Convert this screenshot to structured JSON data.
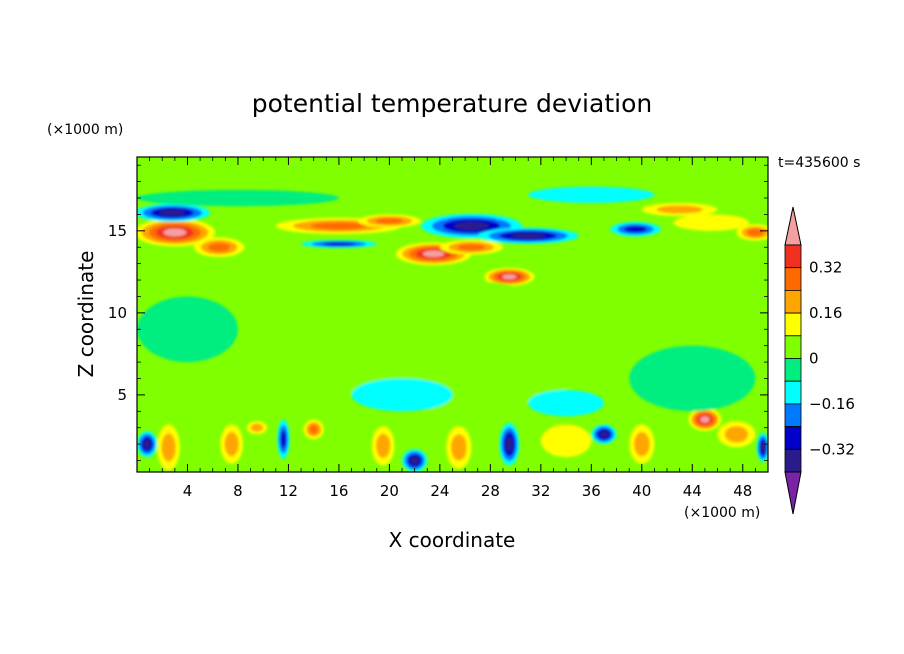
{
  "chart_data": {
    "type": "heatmap",
    "title": "potential temperature deviation",
    "xlabel": "X coordinate",
    "ylabel": "Z coordinate",
    "x_unit": "(×1000 m)",
    "y_unit": "(×1000 m)",
    "time_label": "t=435600 s",
    "xlim": [
      0,
      50
    ],
    "ylim": [
      0.3,
      19.5
    ],
    "x_ticks": [
      4,
      8,
      12,
      16,
      20,
      24,
      28,
      32,
      36,
      40,
      44,
      48
    ],
    "y_ticks": [
      5,
      10,
      15
    ],
    "colorbar": {
      "tick_labels": [
        "0.32",
        "0.16",
        "0",
        "−0.16",
        "−0.32"
      ],
      "tick_values": [
        0.32,
        0.16,
        0,
        -0.16,
        -0.32
      ],
      "levels": [
        {
          "min": 0.4,
          "max": null,
          "color": "#f4a0a0"
        },
        {
          "min": 0.32,
          "max": 0.4,
          "color": "#f03020"
        },
        {
          "min": 0.24,
          "max": 0.32,
          "color": "#ff6a00"
        },
        {
          "min": 0.16,
          "max": 0.24,
          "color": "#ffa500"
        },
        {
          "min": 0.08,
          "max": 0.16,
          "color": "#ffff00"
        },
        {
          "min": 0.0,
          "max": 0.08,
          "color": "#80ff00"
        },
        {
          "min": -0.08,
          "max": 0.0,
          "color": "#00ee80"
        },
        {
          "min": -0.16,
          "max": -0.08,
          "color": "#00ffff"
        },
        {
          "min": -0.24,
          "max": -0.16,
          "color": "#0078ff"
        },
        {
          "min": -0.32,
          "max": -0.24,
          "color": "#0000c8"
        },
        {
          "min": -0.4,
          "max": -0.32,
          "color": "#2a1a8a"
        },
        {
          "min": null,
          "max": -0.4,
          "color": "#7a22a8"
        }
      ]
    },
    "features": [
      {
        "x": 3,
        "z": 14.9,
        "rx": 3.2,
        "rz": 0.85,
        "value": 0.42
      },
      {
        "x": 6.5,
        "z": 14.0,
        "rx": 2.0,
        "rz": 0.6,
        "value": 0.3
      },
      {
        "x": 2.8,
        "z": 16.1,
        "rx": 3.0,
        "rz": 0.55,
        "value": -0.36
      },
      {
        "x": 16,
        "z": 15.3,
        "rx": 5.0,
        "rz": 0.5,
        "value": 0.28
      },
      {
        "x": 20,
        "z": 15.6,
        "rx": 2.5,
        "rz": 0.4,
        "value": 0.24
      },
      {
        "x": 16,
        "z": 14.2,
        "rx": 3.0,
        "rz": 0.25,
        "value": -0.24
      },
      {
        "x": 26.5,
        "z": 15.3,
        "rx": 4.0,
        "rz": 0.75,
        "value": -0.38
      },
      {
        "x": 31,
        "z": 14.7,
        "rx": 4.0,
        "rz": 0.5,
        "value": -0.33
      },
      {
        "x": 23.5,
        "z": 13.6,
        "rx": 3.0,
        "rz": 0.7,
        "value": 0.42
      },
      {
        "x": 26.5,
        "z": 14.0,
        "rx": 2.5,
        "rz": 0.45,
        "value": 0.3
      },
      {
        "x": 29.5,
        "z": 12.2,
        "rx": 2.0,
        "rz": 0.55,
        "value": 0.4
      },
      {
        "x": 39.5,
        "z": 15.1,
        "rx": 2.0,
        "rz": 0.45,
        "value": -0.3
      },
      {
        "x": 49,
        "z": 14.9,
        "rx": 1.5,
        "rz": 0.5,
        "value": 0.3
      },
      {
        "x": 43,
        "z": 16.3,
        "rx": 3.0,
        "rz": 0.4,
        "value": 0.2
      },
      {
        "x": 45.5,
        "z": 15.5,
        "rx": 3.0,
        "rz": 0.5,
        "value": 0.12
      },
      {
        "x": 8,
        "z": 17.0,
        "rx": 8.0,
        "rz": 0.5,
        "value": -0.05
      },
      {
        "x": 36,
        "z": 17.2,
        "rx": 5.0,
        "rz": 0.5,
        "value": -0.08
      },
      {
        "x": 0.8,
        "z": 2.0,
        "rx": 0.8,
        "rz": 0.8,
        "value": -0.34
      },
      {
        "x": 2.5,
        "z": 1.8,
        "rx": 0.9,
        "rz": 1.4,
        "value": 0.2
      },
      {
        "x": 7.5,
        "z": 2.0,
        "rx": 0.9,
        "rz": 1.2,
        "value": 0.22
      },
      {
        "x": 9.5,
        "z": 3.0,
        "rx": 0.8,
        "rz": 0.4,
        "value": 0.18
      },
      {
        "x": 11.6,
        "z": 2.3,
        "rx": 0.5,
        "rz": 1.2,
        "value": -0.3
      },
      {
        "x": 14,
        "z": 2.9,
        "rx": 0.8,
        "rz": 0.6,
        "value": 0.3
      },
      {
        "x": 19.5,
        "z": 1.9,
        "rx": 0.9,
        "rz": 1.2,
        "value": 0.2
      },
      {
        "x": 22,
        "z": 1.0,
        "rx": 1.0,
        "rz": 0.7,
        "value": -0.33
      },
      {
        "x": 25.5,
        "z": 1.8,
        "rx": 1.0,
        "rz": 1.3,
        "value": 0.22
      },
      {
        "x": 29.5,
        "z": 2.0,
        "rx": 0.8,
        "rz": 1.3,
        "value": -0.33
      },
      {
        "x": 34,
        "z": 2.2,
        "rx": 2.0,
        "rz": 1.0,
        "value": 0.12
      },
      {
        "x": 37,
        "z": 2.6,
        "rx": 1.0,
        "rz": 0.6,
        "value": -0.34
      },
      {
        "x": 40,
        "z": 2.0,
        "rx": 1.0,
        "rz": 1.2,
        "value": 0.16
      },
      {
        "x": 45,
        "z": 3.5,
        "rx": 1.3,
        "rz": 0.7,
        "value": 0.42
      },
      {
        "x": 47.5,
        "z": 2.6,
        "rx": 1.5,
        "rz": 0.8,
        "value": 0.22
      },
      {
        "x": 49.6,
        "z": 1.8,
        "rx": 0.5,
        "rz": 0.9,
        "value": -0.34
      },
      {
        "x": 25,
        "z": 8.0,
        "rx": 12.0,
        "rz": 4.0,
        "value": 0.04
      },
      {
        "x": 4,
        "z": 9.0,
        "rx": 4.0,
        "rz": 2.0,
        "value": -0.04
      },
      {
        "x": 44,
        "z": 6.0,
        "rx": 5.0,
        "rz": 2.0,
        "value": -0.05
      },
      {
        "x": 21,
        "z": 5.0,
        "rx": 4.0,
        "rz": 1.0,
        "value": -0.1
      },
      {
        "x": 34,
        "z": 4.5,
        "rx": 3.0,
        "rz": 0.8,
        "value": -0.09
      }
    ]
  }
}
